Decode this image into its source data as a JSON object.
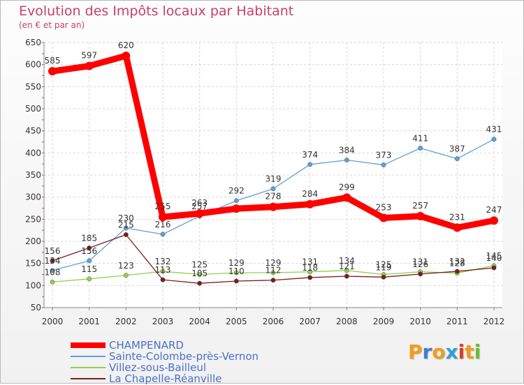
{
  "header": {
    "title": "Evolution des Impôts locaux par Habitant",
    "subtitle": "(en € et par an)"
  },
  "logo": {
    "text": "Proxiti",
    "letter_colors": [
      "#f39c1c",
      "#3a7fd0",
      "#f39c1c",
      "#2ea0d8",
      "#e23b2a",
      "#f39c1c",
      "#6bbf2c"
    ]
  },
  "chart_data": {
    "type": "line",
    "title": "Evolution des Impôts locaux par Habitant",
    "subtitle": "(en € et par an)",
    "xlabel": "",
    "ylabel": "",
    "x": [
      "2000",
      "2001",
      "2002",
      "2003",
      "2004",
      "2005",
      "2006",
      "2007",
      "2008",
      "2009",
      "2010",
      "2011",
      "2012"
    ],
    "y_ticks": [
      50,
      100,
      150,
      200,
      250,
      300,
      350,
      400,
      450,
      500,
      550,
      600,
      650
    ],
    "ylim": [
      50,
      650
    ],
    "grid": true,
    "legend_position": "bottom-left",
    "series": [
      {
        "name": "CHAMPENARD",
        "color": "#ff0000",
        "values": [
          585,
          597,
          620,
          255,
          263,
          274,
          278,
          284,
          299,
          253,
          257,
          231,
          247
        ],
        "labels": [
          "585",
          "597",
          "620",
          "255",
          "263",
          "",
          "278",
          "284",
          "299",
          "253",
          "257",
          "231",
          "247"
        ]
      },
      {
        "name": "Sainte-Colombe-près-Vernon",
        "color": "#5fa0d8",
        "values": [
          134,
          156,
          230,
          216,
          257,
          292,
          319,
          374,
          384,
          373,
          411,
          387,
          431
        ],
        "labels": [
          "134",
          "156",
          "230",
          "216",
          "257",
          "292",
          "319",
          "374",
          "384",
          "373",
          "411",
          "387",
          "431"
        ]
      },
      {
        "name": "Villez-sous-Bailleul",
        "color": "#92d050",
        "values": [
          108,
          115,
          123,
          132,
          125,
          129,
          129,
          131,
          134,
          125,
          131,
          128,
          145
        ],
        "labels": [
          "108",
          "115",
          "123",
          "132",
          "125",
          "129",
          "129",
          "131",
          "134",
          "125",
          "131",
          "128",
          "145"
        ]
      },
      {
        "name": "La Chapelle-Réanville",
        "color": "#7b1c1c",
        "values": [
          156,
          185,
          215,
          113,
          105,
          110,
          112,
          118,
          121,
          119,
          126,
          132,
          140
        ],
        "labels": [
          "156",
          "185",
          "215",
          "113",
          "105",
          "110",
          "112",
          "118",
          "121",
          "119",
          "126",
          "132",
          "140"
        ]
      }
    ]
  }
}
